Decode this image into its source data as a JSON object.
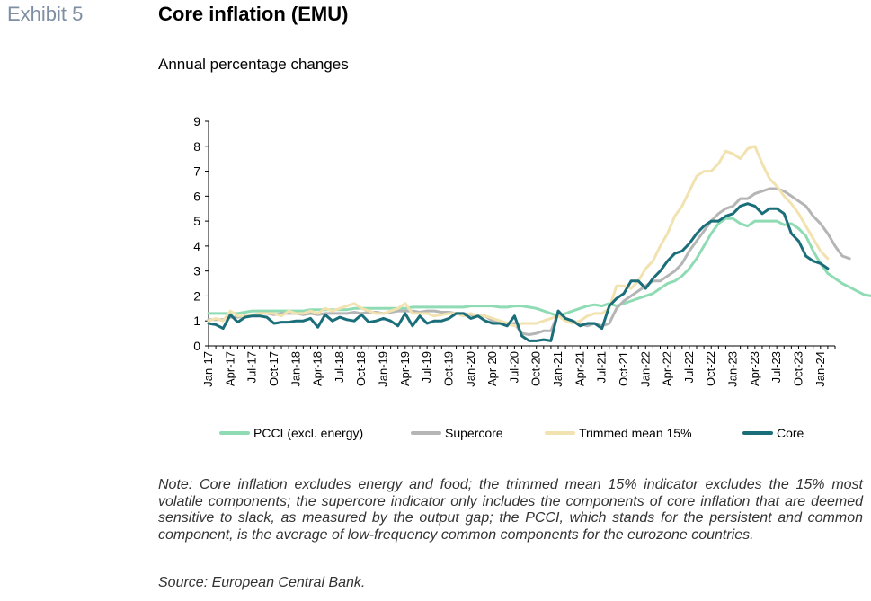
{
  "header": {
    "exhibit": "Exhibit 5",
    "title": "Core inflation (EMU)",
    "subtitle": "Annual percentage changes"
  },
  "footer": {
    "note": "Note: Core inflation excludes energy and food; the trimmed mean 15% indicator excludes the 15% most volatile components; the supercore indicator only includes the components of core inflation that are deemed sensitive to slack, as measured by the output gap; the PCCI, which stands for the persistent and common component, is the average of low-frequency common components for the eurozone countries.",
    "source": "Source: European Central Bank."
  },
  "chart_data": {
    "type": "line",
    "title": "Core inflation (EMU)",
    "subtitle": "Annual percentage changes",
    "ylim": [
      0,
      9
    ],
    "yticks": [
      0,
      1,
      2,
      3,
      4,
      5,
      6,
      7,
      8,
      9
    ],
    "x_start": "Jan-17",
    "xtick_labels": [
      "Jan-17",
      "Apr-17",
      "Jul-17",
      "Oct-17",
      "Jan-18",
      "Apr-18",
      "Jul-18",
      "Oct-18",
      "Jan-19",
      "Apr-19",
      "Jul-19",
      "Oct-19",
      "Jan-20",
      "Apr-20",
      "Jul-20",
      "Oct-20",
      "Jan-21",
      "Apr-21",
      "Jul-21",
      "Oct-21",
      "Jan-22",
      "Apr-22",
      "Jul-22",
      "Oct-22",
      "Jan-23",
      "Apr-23",
      "Jul-23",
      "Oct-23",
      "Jan-24"
    ],
    "grid": false,
    "legend_position": "bottom",
    "series": [
      {
        "name": "PCCI (excl. energy)",
        "color": "#8fdcb4",
        "values": [
          1.3,
          1.3,
          1.3,
          1.3,
          1.3,
          1.35,
          1.4,
          1.4,
          1.4,
          1.4,
          1.4,
          1.4,
          1.4,
          1.4,
          1.45,
          1.45,
          1.45,
          1.45,
          1.45,
          1.45,
          1.5,
          1.5,
          1.5,
          1.5,
          1.5,
          1.5,
          1.5,
          1.5,
          1.55,
          1.55,
          1.55,
          1.55,
          1.55,
          1.55,
          1.55,
          1.55,
          1.6,
          1.6,
          1.6,
          1.6,
          1.55,
          1.55,
          1.6,
          1.6,
          1.55,
          1.5,
          1.4,
          1.3,
          1.2,
          1.3,
          1.4,
          1.5,
          1.6,
          1.65,
          1.6,
          1.7,
          1.6,
          1.7,
          1.8,
          1.9,
          2.0,
          2.1,
          2.3,
          2.5,
          2.6,
          2.8,
          3.1,
          3.5,
          4.0,
          4.5,
          4.9,
          5.1,
          5.1,
          4.9,
          4.8,
          5.0,
          5.0,
          5.0,
          5.0,
          4.85,
          4.9,
          4.7,
          4.4,
          3.8,
          3.3,
          2.9,
          2.7,
          2.5,
          2.35,
          2.2,
          2.05,
          2.0,
          2.05
        ]
      },
      {
        "name": "Supercore",
        "color": "#b5b5b5",
        "values": [
          1.05,
          1.05,
          1.05,
          1.15,
          1.15,
          1.2,
          1.2,
          1.3,
          1.3,
          1.25,
          1.3,
          1.3,
          1.3,
          1.25,
          1.3,
          1.25,
          1.3,
          1.3,
          1.3,
          1.3,
          1.35,
          1.3,
          1.35,
          1.35,
          1.3,
          1.35,
          1.4,
          1.4,
          1.4,
          1.35,
          1.4,
          1.4,
          1.35,
          1.35,
          1.3,
          1.3,
          1.25,
          1.2,
          1.2,
          1.0,
          1.0,
          0.9,
          0.9,
          0.5,
          0.45,
          0.5,
          0.6,
          0.6,
          1.3,
          1.1,
          1.0,
          0.9,
          0.8,
          0.9,
          0.8,
          0.9,
          1.5,
          1.8,
          2.0,
          2.2,
          2.4,
          2.6,
          2.6,
          2.8,
          3.0,
          3.3,
          3.8,
          4.2,
          4.6,
          5.0,
          5.3,
          5.5,
          5.6,
          5.9,
          5.9,
          6.1,
          6.2,
          6.3,
          6.3,
          6.2,
          6.0,
          5.8,
          5.6,
          5.2,
          4.9,
          4.5,
          4.0,
          3.6,
          3.5
        ]
      },
      {
        "name": "Trimmed mean 15%",
        "color": "#f1e2b0",
        "values": [
          1.0,
          1.1,
          1.0,
          1.4,
          1.2,
          1.2,
          1.25,
          1.3,
          1.3,
          1.3,
          1.2,
          1.4,
          1.3,
          1.3,
          1.4,
          1.3,
          1.5,
          1.4,
          1.5,
          1.6,
          1.7,
          1.5,
          1.4,
          1.3,
          1.3,
          1.4,
          1.5,
          1.7,
          1.3,
          1.3,
          1.3,
          1.2,
          1.25,
          1.3,
          1.3,
          1.2,
          1.3,
          1.2,
          1.2,
          1.1,
          1.0,
          0.9,
          0.8,
          0.9,
          0.9,
          0.9,
          1.0,
          1.1,
          1.2,
          1.0,
          0.9,
          1.0,
          1.2,
          1.3,
          1.3,
          1.5,
          2.4,
          2.4,
          2.3,
          2.6,
          3.1,
          3.4,
          4.0,
          4.5,
          5.2,
          5.6,
          6.2,
          6.8,
          7.0,
          7.0,
          7.3,
          7.8,
          7.7,
          7.5,
          7.9,
          8.0,
          7.3,
          6.7,
          6.4,
          6.0,
          5.7,
          5.3,
          4.8,
          4.3,
          3.8,
          3.5
        ]
      },
      {
        "name": "Core",
        "color": "#1a6e7a",
        "values": [
          0.9,
          0.85,
          0.7,
          1.25,
          0.95,
          1.15,
          1.2,
          1.2,
          1.15,
          0.9,
          0.95,
          0.95,
          1.0,
          1.0,
          1.1,
          0.75,
          1.25,
          1.0,
          1.15,
          1.05,
          1.0,
          1.25,
          0.95,
          1.0,
          1.1,
          1.0,
          0.8,
          1.3,
          0.8,
          1.2,
          0.9,
          1.0,
          1.0,
          1.1,
          1.3,
          1.3,
          1.1,
          1.2,
          1.0,
          0.9,
          0.9,
          0.8,
          1.2,
          0.4,
          0.2,
          0.2,
          0.25,
          0.2,
          1.4,
          1.1,
          1.0,
          0.8,
          0.9,
          0.9,
          0.7,
          1.6,
          1.9,
          2.1,
          2.6,
          2.6,
          2.3,
          2.7,
          3.0,
          3.4,
          3.7,
          3.8,
          4.1,
          4.5,
          4.8,
          5.0,
          5.0,
          5.2,
          5.3,
          5.6,
          5.7,
          5.6,
          5.3,
          5.5,
          5.5,
          5.3,
          4.5,
          4.2,
          3.6,
          3.4,
          3.3,
          3.1
        ]
      }
    ]
  }
}
